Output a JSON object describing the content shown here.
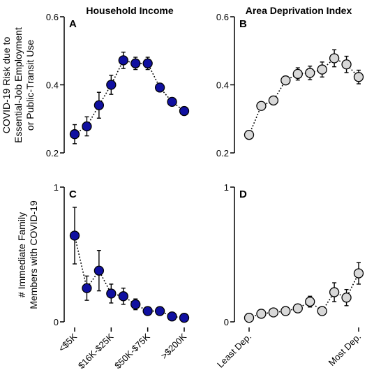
{
  "figure": {
    "col_titles": [
      "Household Income",
      "Area Deprivation Index"
    ],
    "row_ylabels": [
      [
        "COVID-19 Risk due to",
        "Essential-Job Employment",
        "or Public-Transit Use"
      ],
      [
        "# Immediate Family",
        "Members with COVID-19"
      ]
    ]
  },
  "chart_data": [
    {
      "panel": "A",
      "type": "scatter",
      "title": "Household Income",
      "ylim": [
        0.2,
        0.6
      ],
      "yticks": [
        0.2,
        0.4,
        0.6
      ],
      "ytick_labels": [
        "0.2",
        "0.4",
        "0.6"
      ],
      "x": [
        1,
        2,
        3,
        4,
        5,
        6,
        7,
        8,
        9,
        10
      ],
      "y": [
        0.255,
        0.278,
        0.34,
        0.4,
        0.472,
        0.463,
        0.463,
        0.392,
        0.35,
        0.323
      ],
      "err": [
        0.028,
        0.028,
        0.038,
        0.028,
        0.024,
        0.018,
        0.018,
        0.012,
        0.012,
        0.01
      ],
      "marker_color": "#1010a0",
      "connected": "dotted"
    },
    {
      "panel": "B",
      "type": "scatter",
      "title": "Area Deprivation Index",
      "ylim": [
        0.2,
        0.6
      ],
      "yticks": [
        0.2,
        0.4,
        0.6
      ],
      "ytick_labels": [
        "0.2",
        "0.4",
        "0.6"
      ],
      "x": [
        1,
        2,
        3,
        4,
        5,
        6,
        7,
        8,
        9,
        10
      ],
      "y": [
        0.253,
        0.338,
        0.354,
        0.413,
        0.432,
        0.435,
        0.445,
        0.478,
        0.46,
        0.423
      ],
      "err": [
        0.008,
        0.008,
        0.01,
        0.01,
        0.018,
        0.02,
        0.022,
        0.025,
        0.024,
        0.02
      ],
      "marker_color": "#d8d8d8",
      "connected": "dotted"
    },
    {
      "panel": "C",
      "type": "scatter",
      "ylim": [
        0,
        1
      ],
      "yticks": [
        0,
        1
      ],
      "ytick_labels": [
        "0",
        "1"
      ],
      "x": [
        1,
        2,
        3,
        4,
        5,
        6,
        7,
        8,
        9,
        10
      ],
      "y": [
        0.64,
        0.25,
        0.38,
        0.21,
        0.19,
        0.13,
        0.08,
        0.08,
        0.04,
        0.03
      ],
      "err": [
        0.21,
        0.09,
        0.15,
        0.07,
        0.06,
        0.04,
        0.025,
        0.02,
        0.012,
        0.01
      ],
      "xtick_labels": [
        "<$5K",
        "$16K-$25K",
        "$50K-$75K",
        ">$200K"
      ],
      "xtick_positions": [
        1,
        4,
        7,
        10
      ],
      "marker_color": "#1010a0",
      "connected": "dotted"
    },
    {
      "panel": "D",
      "type": "scatter",
      "ylim": [
        0,
        1
      ],
      "yticks": [
        0,
        1
      ],
      "ytick_labels": [
        "0",
        "1"
      ],
      "x": [
        1,
        2,
        3,
        4,
        5,
        6,
        7,
        8,
        9,
        10
      ],
      "y": [
        0.03,
        0.06,
        0.07,
        0.08,
        0.1,
        0.15,
        0.08,
        0.22,
        0.18,
        0.36
      ],
      "err": [
        0.01,
        0.01,
        0.012,
        0.015,
        0.02,
        0.04,
        0.025,
        0.07,
        0.06,
        0.08
      ],
      "xtick_labels": [
        "Least Dep.",
        "Most Dep."
      ],
      "xtick_positions": [
        1,
        10
      ],
      "marker_color": "#d8d8d8",
      "connected": "dotted"
    }
  ]
}
